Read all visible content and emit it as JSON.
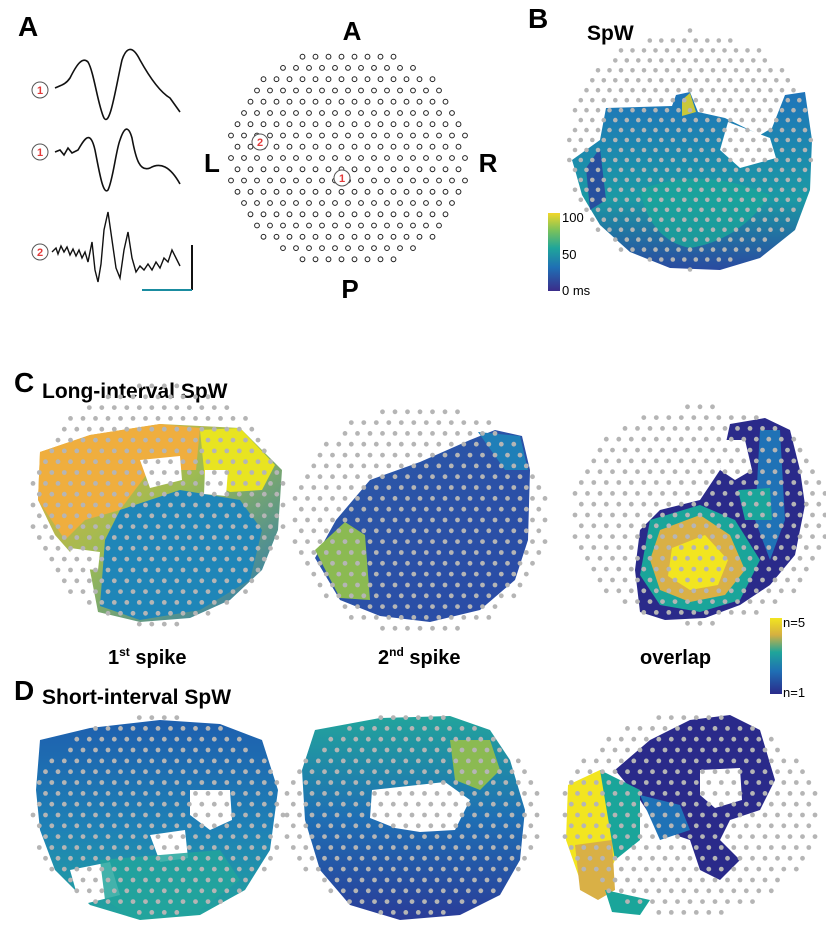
{
  "panels": {
    "A": {
      "label": "A",
      "orientation": {
        "anterior": "A",
        "posterior": "P",
        "left": "L",
        "right": "R"
      },
      "traces": [
        {
          "electrode": "1"
        },
        {
          "electrode": "1"
        },
        {
          "electrode": "2"
        }
      ],
      "array_markers": [
        "1",
        "2"
      ]
    },
    "B": {
      "label": "B",
      "title": "SpW",
      "colorbar": {
        "ticks": [
          "100",
          "50",
          "0 ms"
        ],
        "colors": [
          "#3b2c8a",
          "#1f6fb4",
          "#1fa59a",
          "#7cc25a",
          "#f2d72a"
        ]
      }
    },
    "C": {
      "label": "C",
      "title": "Long-interval SpW",
      "maps": [
        "1st spike",
        "2nd spike",
        "overlap"
      ],
      "captions": {
        "first": {
          "ordinal": "1",
          "suffix": "st",
          "word": " spike"
        },
        "second": {
          "ordinal": "2",
          "suffix": "nd",
          "word": " spike"
        },
        "third": {
          "word": "overlap"
        }
      },
      "colorbar": {
        "ticks": [
          "n=5",
          "n=1"
        ],
        "colors": [
          "#2a2a8a",
          "#1f6fb4",
          "#1fa59a",
          "#d6b040",
          "#f2e520"
        ]
      }
    },
    "D": {
      "label": "D",
      "title": "Short-interval SpW"
    }
  },
  "colors": {
    "electrode_dot": "#b5b5b5",
    "trace": "#111111",
    "scale_bar_time": "#1a8ca0",
    "electrode_label": "#e23a3a",
    "latency_low": "#3b2c8a",
    "latency_mid": "#1fa59a",
    "latency_high": "#f2d72a",
    "overlap_yellow": "#f2e520",
    "overlap_orange": "#d9b046",
    "overlap_navy": "#2a2a8a"
  }
}
